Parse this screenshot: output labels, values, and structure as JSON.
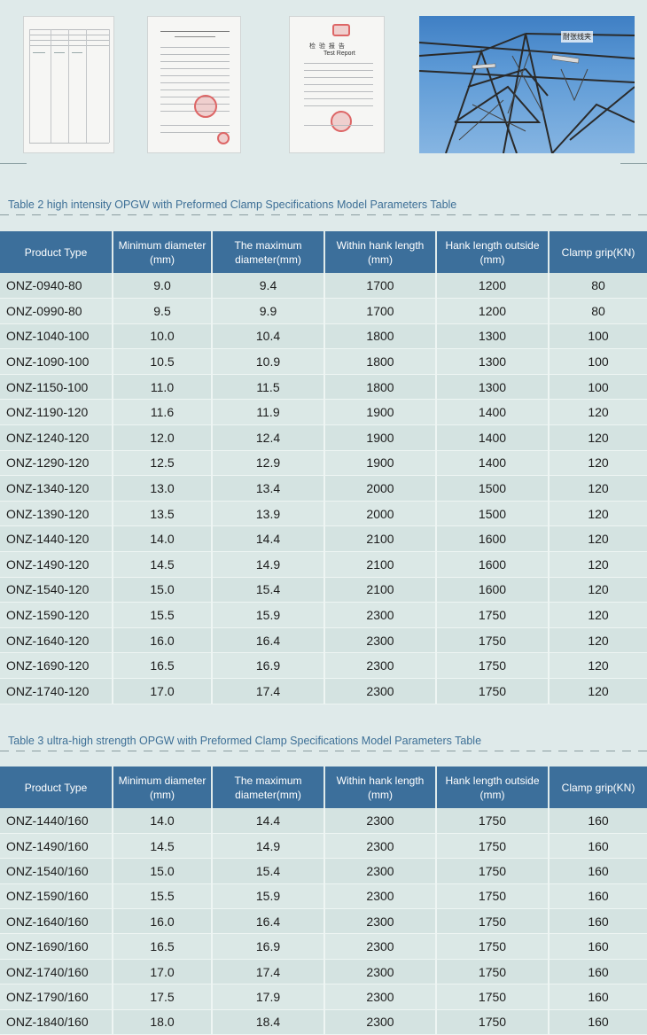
{
  "images": {
    "document_photos": [
      "inspection-form-photo",
      "certificate-photo",
      "test-report-photo"
    ],
    "test_report": {
      "title_cn": "检 验 报 告",
      "title_en": "Test Report"
    },
    "tower_photo": {
      "label": "耐张线夹"
    }
  },
  "table2": {
    "caption": "Table 2 high intensity OPGW with Preformed Clamp Specifications Model Parameters Table",
    "headers": [
      "Product Type",
      "Minimum diameter (mm)",
      "The maximum diameter(mm)",
      "Within hank length (mm)",
      "Hank length outside (mm)",
      "Clamp grip(KN)"
    ],
    "rows": [
      [
        "ONZ-0940-80",
        "9.0",
        "9.4",
        "1700",
        "1200",
        "80"
      ],
      [
        "ONZ-0990-80",
        "9.5",
        "9.9",
        "1700",
        "1200",
        "80"
      ],
      [
        "ONZ-1040-100",
        "10.0",
        "10.4",
        "1800",
        "1300",
        "100"
      ],
      [
        "ONZ-1090-100",
        "10.5",
        "10.9",
        "1800",
        "1300",
        "100"
      ],
      [
        "ONZ-1150-100",
        "11.0",
        "11.5",
        "1800",
        "1300",
        "100"
      ],
      [
        "ONZ-1190-120",
        "11.6",
        "11.9",
        "1900",
        "1400",
        "120"
      ],
      [
        "ONZ-1240-120",
        "12.0",
        "12.4",
        "1900",
        "1400",
        "120"
      ],
      [
        "ONZ-1290-120",
        "12.5",
        "12.9",
        "1900",
        "1400",
        "120"
      ],
      [
        "ONZ-1340-120",
        "13.0",
        "13.4",
        "2000",
        "1500",
        "120"
      ],
      [
        "ONZ-1390-120",
        "13.5",
        "13.9",
        "2000",
        "1500",
        "120"
      ],
      [
        "ONZ-1440-120",
        "14.0",
        "14.4",
        "2100",
        "1600",
        "120"
      ],
      [
        "ONZ-1490-120",
        "14.5",
        "14.9",
        "2100",
        "1600",
        "120"
      ],
      [
        "ONZ-1540-120",
        "15.0",
        "15.4",
        "2100",
        "1600",
        "120"
      ],
      [
        "ONZ-1590-120",
        "15.5",
        "15.9",
        "2300",
        "1750",
        "120"
      ],
      [
        "ONZ-1640-120",
        "16.0",
        "16.4",
        "2300",
        "1750",
        "120"
      ],
      [
        "ONZ-1690-120",
        "16.5",
        "16.9",
        "2300",
        "1750",
        "120"
      ],
      [
        "ONZ-1740-120",
        "17.0",
        "17.4",
        "2300",
        "1750",
        "120"
      ]
    ]
  },
  "table3": {
    "caption": "Table 3 ultra-high strength OPGW with Preformed Clamp Specifications Model Parameters Table",
    "headers": [
      "Product Type",
      "Minimum diameter (mm)",
      "The maximum diameter(mm)",
      "Within hank length (mm)",
      "Hank length outside (mm)",
      "Clamp grip(KN)"
    ],
    "rows": [
      [
        "ONZ-1440/160",
        "14.0",
        "14.4",
        "2300",
        "1750",
        "160"
      ],
      [
        "ONZ-1490/160",
        "14.5",
        "14.9",
        "2300",
        "1750",
        "160"
      ],
      [
        "ONZ-1540/160",
        "15.0",
        "15.4",
        "2300",
        "1750",
        "160"
      ],
      [
        "ONZ-1590/160",
        "15.5",
        "15.9",
        "2300",
        "1750",
        "160"
      ],
      [
        "ONZ-1640/160",
        "16.0",
        "16.4",
        "2300",
        "1750",
        "160"
      ],
      [
        "ONZ-1690/160",
        "16.5",
        "16.9",
        "2300",
        "1750",
        "160"
      ],
      [
        "ONZ-1740/160",
        "17.0",
        "17.4",
        "2300",
        "1750",
        "160"
      ],
      [
        "ONZ-1790/160",
        "17.5",
        "17.9",
        "2300",
        "1750",
        "160"
      ],
      [
        "ONZ-1840/160",
        "18.0",
        "18.4",
        "2300",
        "1750",
        "160"
      ]
    ]
  },
  "colors": {
    "page_background": "#dfeaea",
    "header_background": "#3c6f9b",
    "header_text": "#ffffff",
    "caption_text": "#3d6f96",
    "row_background": "#d4e3e1"
  }
}
